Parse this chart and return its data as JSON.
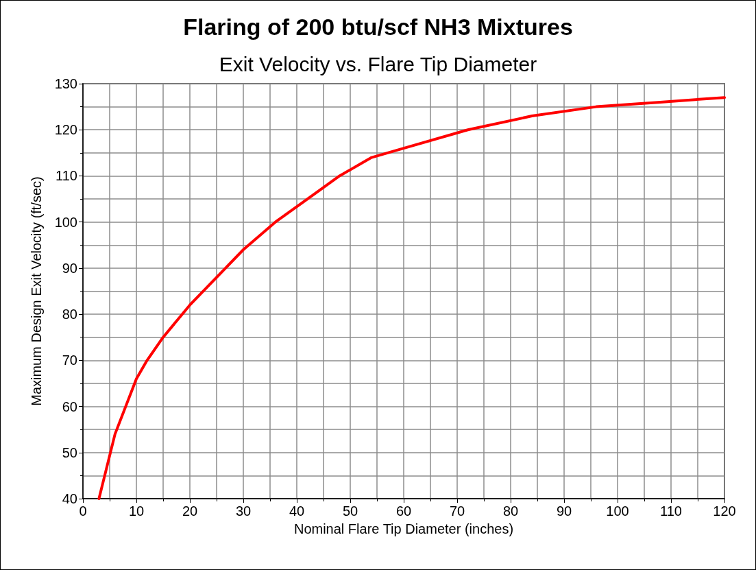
{
  "chart_data": {
    "type": "line",
    "title": "Flaring of 200 btu/scf NH3 Mixtures",
    "subtitle": "Exit Velocity vs. Flare Tip Diameter",
    "xlabel": "Nominal Flare Tip Diameter (inches)",
    "ylabel": "Maximum Design Exit Velocity (ft/sec)",
    "x": [
      3,
      6,
      10,
      12,
      15,
      20,
      25,
      30,
      36,
      42,
      48,
      54,
      60,
      72,
      84,
      96,
      108,
      120
    ],
    "series": [
      {
        "color": "#ff0000",
        "values": [
          40,
          54,
          66,
          70,
          75,
          82,
          88,
          94,
          100,
          105,
          110,
          114,
          116,
          120,
          123,
          125,
          126,
          127
        ]
      }
    ],
    "xlim": [
      0,
      120
    ],
    "xticks": [
      0,
      10,
      20,
      30,
      40,
      50,
      60,
      70,
      80,
      90,
      100,
      110,
      120
    ],
    "ylim": [
      40,
      130
    ],
    "yticks": [
      40,
      50,
      60,
      70,
      80,
      90,
      100,
      110,
      120,
      130
    ],
    "grid": true,
    "marker": "none",
    "line_style": "solid"
  }
}
